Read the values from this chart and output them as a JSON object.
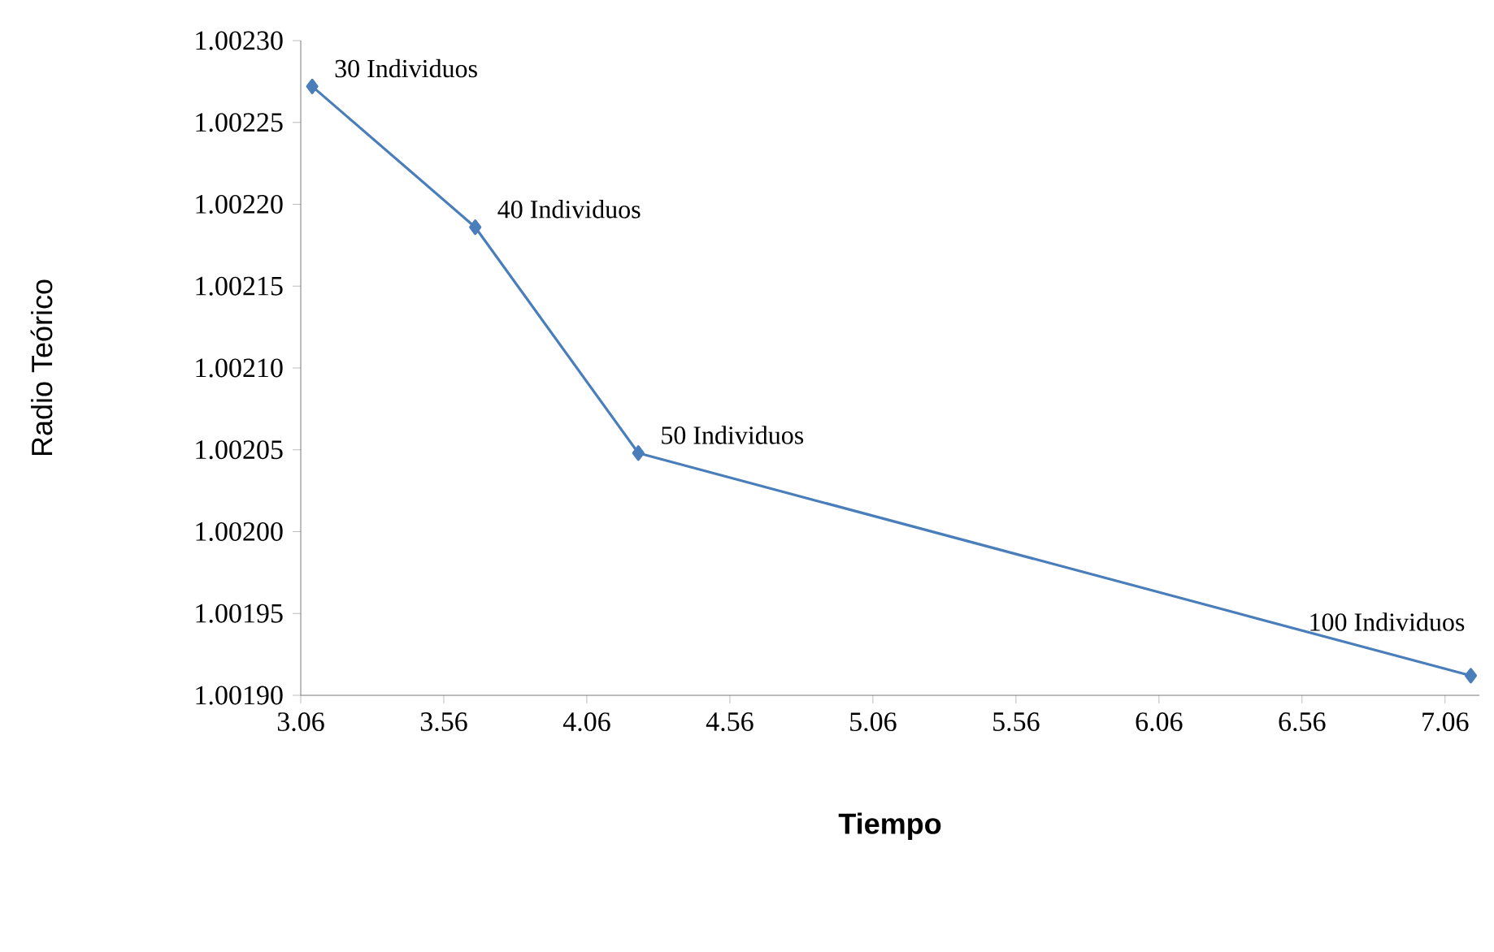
{
  "chart_data": {
    "type": "line",
    "xlabel": "Tiempo",
    "ylabel": "Radio Teórico",
    "x": [
      3.1,
      3.67,
      4.24,
      7.15
    ],
    "series": [
      {
        "color": "#4a7ebb",
        "values": [
          1.002272,
          1.002186,
          1.002048,
          1.001912
        ]
      }
    ],
    "marker": "diamond",
    "grid": false,
    "xlim": [
      3.06,
      7.18
    ],
    "xticks": [
      3.06,
      3.56,
      4.06,
      4.56,
      5.06,
      5.56,
      6.06,
      6.56,
      7.06
    ],
    "ylim": [
      1.0019,
      1.0023
    ],
    "yticks": [
      {
        "value": 1.0019,
        "label": "1.00190"
      },
      {
        "value": 1.00195,
        "label": "1.00195"
      },
      {
        "value": 1.002,
        "label": "1.00200"
      },
      {
        "value": 1.00205,
        "label": "1.00205"
      },
      {
        "value": 1.0021,
        "label": "1.00210"
      },
      {
        "value": 1.00215,
        "label": "1.00215"
      },
      {
        "value": 1.0022,
        "label": "1.00220"
      },
      {
        "value": 1.00225,
        "label": "1.00225"
      },
      {
        "value": 1.0023,
        "label": "1.00230"
      }
    ],
    "annotations": [
      {
        "text": "30 Individuos",
        "x": 3.1,
        "y": 1.002272
      },
      {
        "text": "40 Individuos",
        "x": 3.67,
        "y": 1.002186
      },
      {
        "text": "50 Individuos",
        "x": 4.24,
        "y": 1.002048
      },
      {
        "text": "100 Individuos",
        "x": 7.15,
        "y": 1.001912
      }
    ]
  }
}
